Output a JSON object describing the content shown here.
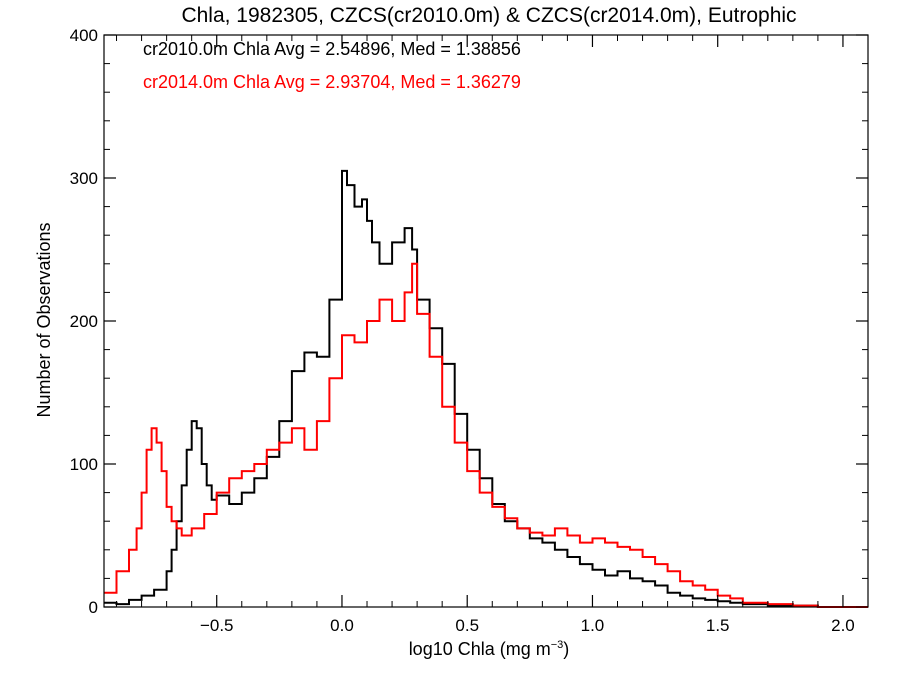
{
  "chart_data": {
    "type": "line",
    "title": "Chla, 1982305, CZCS(cr2010.0m) & CZCS(cr2014.0m), Eutrophic",
    "xlabel_main": "log10 Chla (mg m",
    "xlabel_exp": "−3",
    "xlabel_tail": ")",
    "ylabel": "Number of Observations",
    "xlim": [
      -0.95,
      2.1
    ],
    "ylim": [
      0,
      400
    ],
    "xticks": [
      -0.5,
      0.0,
      0.5,
      1.0,
      1.5,
      2.0
    ],
    "xtick_labels": [
      "−0.5",
      "0.0",
      "0.5",
      "1.0",
      "1.5",
      "2.0"
    ],
    "yticks": [
      0,
      100,
      200,
      300,
      400
    ],
    "ytick_labels": [
      "0",
      "100",
      "200",
      "300",
      "400"
    ],
    "annotations": [
      {
        "text": "cr2010.0m Chla Avg = 2.54896, Med = 1.38856",
        "color": "#000000"
      },
      {
        "text": "cr2014.0m Chla Avg = 2.93704, Med = 1.36279",
        "color": "#ff0000"
      }
    ],
    "series": [
      {
        "color": "#000000",
        "x": [
          -0.95,
          -0.9,
          -0.85,
          -0.8,
          -0.75,
          -0.7,
          -0.68,
          -0.66,
          -0.64,
          -0.62,
          -0.6,
          -0.58,
          -0.56,
          -0.54,
          -0.52,
          -0.5,
          -0.45,
          -0.4,
          -0.35,
          -0.3,
          -0.25,
          -0.2,
          -0.15,
          -0.1,
          -0.05,
          0.0,
          0.02,
          0.05,
          0.08,
          0.1,
          0.12,
          0.15,
          0.2,
          0.25,
          0.28,
          0.3,
          0.35,
          0.4,
          0.45,
          0.5,
          0.55,
          0.6,
          0.65,
          0.7,
          0.75,
          0.8,
          0.85,
          0.9,
          0.95,
          1.0,
          1.05,
          1.1,
          1.15,
          1.2,
          1.25,
          1.3,
          1.35,
          1.4,
          1.45,
          1.5,
          1.55,
          1.6,
          1.7,
          1.8,
          1.9,
          2.0,
          2.1
        ],
        "y": [
          3,
          2,
          5,
          8,
          12,
          25,
          40,
          60,
          85,
          110,
          130,
          125,
          100,
          85,
          75,
          78,
          72,
          80,
          90,
          105,
          130,
          165,
          178,
          175,
          215,
          305,
          295,
          280,
          285,
          270,
          255,
          240,
          255,
          265,
          250,
          215,
          195,
          170,
          135,
          110,
          90,
          72,
          60,
          55,
          48,
          45,
          40,
          35,
          30,
          26,
          22,
          25,
          20,
          18,
          15,
          10,
          8,
          6,
          5,
          4,
          3,
          2,
          1,
          1,
          0,
          0,
          0
        ]
      },
      {
        "color": "#ff0000",
        "x": [
          -0.95,
          -0.9,
          -0.85,
          -0.82,
          -0.8,
          -0.78,
          -0.76,
          -0.74,
          -0.72,
          -0.7,
          -0.68,
          -0.66,
          -0.64,
          -0.6,
          -0.55,
          -0.5,
          -0.45,
          -0.4,
          -0.35,
          -0.3,
          -0.25,
          -0.2,
          -0.15,
          -0.1,
          -0.05,
          0.0,
          0.05,
          0.1,
          0.15,
          0.2,
          0.25,
          0.28,
          0.3,
          0.35,
          0.4,
          0.45,
          0.5,
          0.55,
          0.6,
          0.65,
          0.7,
          0.75,
          0.8,
          0.85,
          0.9,
          0.95,
          1.0,
          1.05,
          1.1,
          1.15,
          1.2,
          1.25,
          1.3,
          1.35,
          1.4,
          1.45,
          1.5,
          1.55,
          1.6,
          1.7,
          1.8,
          1.9,
          2.0,
          2.1
        ],
        "y": [
          10,
          25,
          40,
          55,
          80,
          110,
          125,
          115,
          95,
          70,
          60,
          55,
          50,
          55,
          65,
          80,
          90,
          95,
          100,
          110,
          115,
          125,
          110,
          130,
          160,
          190,
          185,
          200,
          215,
          200,
          220,
          240,
          205,
          175,
          140,
          115,
          95,
          80,
          70,
          62,
          55,
          52,
          50,
          55,
          50,
          45,
          48,
          45,
          42,
          40,
          35,
          30,
          25,
          18,
          15,
          12,
          8,
          6,
          3,
          2,
          1,
          0,
          0,
          0
        ]
      }
    ]
  }
}
